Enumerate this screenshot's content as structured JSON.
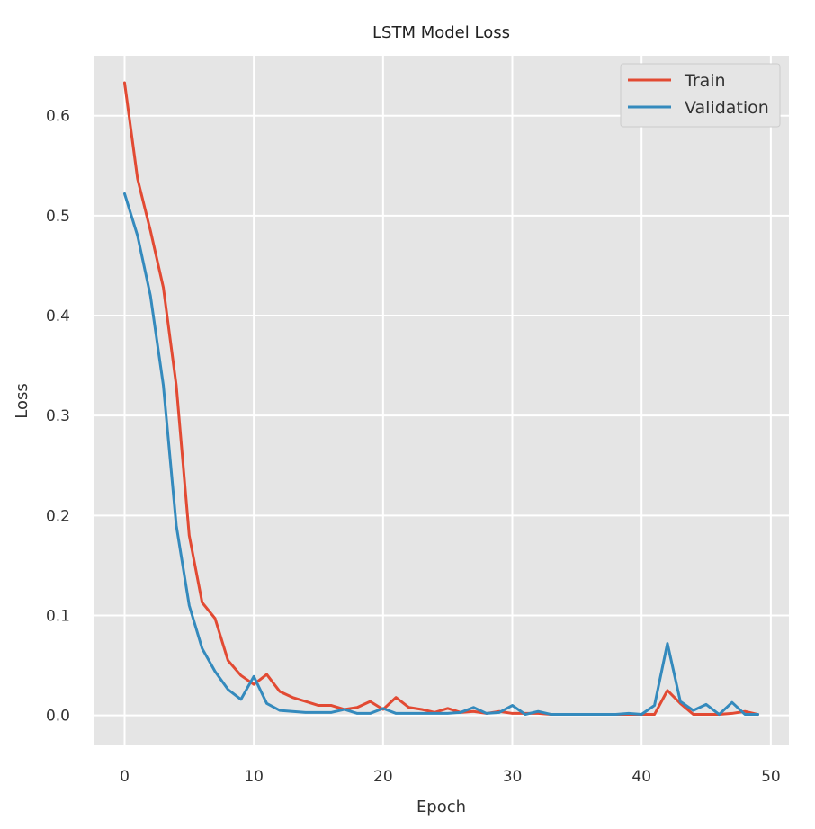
{
  "chart_data": {
    "type": "line",
    "title": "LSTM Model Loss",
    "xlabel": "Epoch",
    "ylabel": "Loss",
    "xlim": [
      -2.4,
      51.4
    ],
    "ylim": [
      -0.03,
      0.66
    ],
    "xticks": [
      0,
      10,
      20,
      30,
      40,
      50
    ],
    "yticks": [
      0.0,
      0.1,
      0.2,
      0.3,
      0.4,
      0.5,
      0.6
    ],
    "ytick_labels": [
      "0.0",
      "0.1",
      "0.2",
      "0.3",
      "0.4",
      "0.5",
      "0.6"
    ],
    "grid": true,
    "legend_position": "top-right",
    "x": [
      0,
      1,
      2,
      3,
      4,
      5,
      6,
      7,
      8,
      9,
      10,
      11,
      12,
      13,
      14,
      15,
      16,
      17,
      18,
      19,
      20,
      21,
      22,
      23,
      24,
      25,
      26,
      27,
      28,
      29,
      30,
      31,
      32,
      33,
      34,
      35,
      36,
      37,
      38,
      39,
      40,
      41,
      42,
      43,
      44,
      45,
      46,
      47,
      48,
      49
    ],
    "series": [
      {
        "name": "Train",
        "color": "#E24A33",
        "values": [
          0.633,
          0.537,
          0.485,
          0.428,
          0.33,
          0.18,
          0.113,
          0.097,
          0.055,
          0.04,
          0.031,
          0.041,
          0.024,
          0.018,
          0.014,
          0.01,
          0.01,
          0.006,
          0.008,
          0.014,
          0.006,
          0.018,
          0.008,
          0.006,
          0.003,
          0.007,
          0.003,
          0.004,
          0.002,
          0.004,
          0.002,
          0.002,
          0.002,
          0.001,
          0.001,
          0.001,
          0.001,
          0.001,
          0.001,
          0.001,
          0.001,
          0.001,
          0.025,
          0.012,
          0.001,
          0.001,
          0.001,
          0.002,
          0.004,
          0.001
        ]
      },
      {
        "name": "Validation",
        "color": "#348ABD",
        "values": [
          0.522,
          0.48,
          0.42,
          0.33,
          0.19,
          0.11,
          0.067,
          0.044,
          0.026,
          0.016,
          0.039,
          0.012,
          0.005,
          0.004,
          0.003,
          0.003,
          0.003,
          0.006,
          0.002,
          0.002,
          0.007,
          0.002,
          0.002,
          0.002,
          0.002,
          0.002,
          0.003,
          0.008,
          0.002,
          0.003,
          0.01,
          0.001,
          0.004,
          0.001,
          0.001,
          0.001,
          0.001,
          0.001,
          0.001,
          0.002,
          0.001,
          0.01,
          0.072,
          0.014,
          0.005,
          0.011,
          0.001,
          0.013,
          0.001,
          0.001
        ]
      }
    ]
  }
}
